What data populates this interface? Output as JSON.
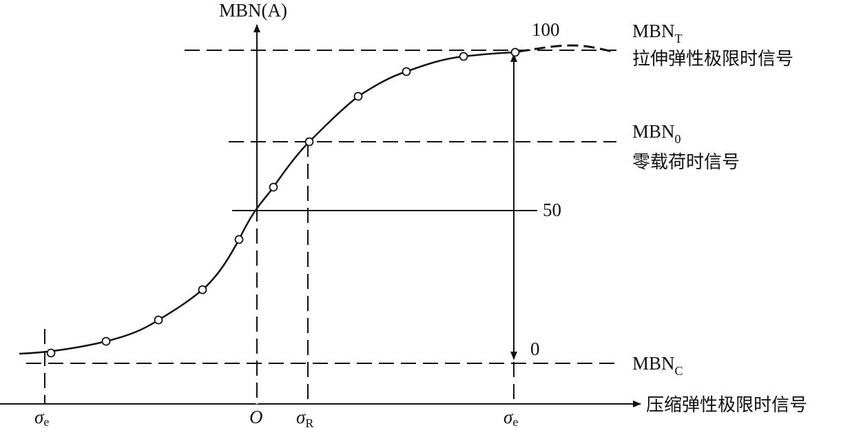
{
  "diagram": {
    "y_axis_label": "MBN(A)",
    "x_axis_label": "压缩弹性极限时信号",
    "scale": {
      "top": "100",
      "mid": "50",
      "bottom": "0"
    },
    "levels": {
      "tension": {
        "main": "MBN",
        "sub": "T",
        "caption": "拉伸弹性极限时信号"
      },
      "zero_load": {
        "main": "MBN",
        "sub": "0",
        "caption": "零载荷时信号"
      },
      "compression": {
        "main": "MBN",
        "sub": "C"
      }
    },
    "x_ticks": {
      "left": {
        "main": "σ",
        "sub": "e"
      },
      "origin": "O",
      "residual": {
        "main": "σ",
        "sub": "R"
      },
      "right": {
        "main": "σ",
        "sub": "e"
      }
    },
    "colors": {
      "ink": "#111111",
      "background": "#ffffff"
    }
  }
}
